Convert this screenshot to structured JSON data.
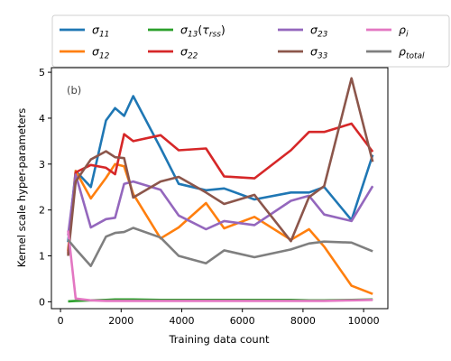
{
  "chart_data": {
    "type": "line",
    "xlabel": "Training data count",
    "ylabel": "Kernel scale hyper-parameters",
    "annotation": "(b)",
    "xlim": [
      -300,
      10800
    ],
    "ylim": [
      -0.15,
      5.1
    ],
    "xticks": [
      0,
      2000,
      4000,
      6000,
      8000,
      10000
    ],
    "yticks": [
      0,
      1,
      2,
      3,
      4,
      5
    ],
    "grid": false,
    "legend_position": "top",
    "x": [
      250,
      500,
      1000,
      1500,
      1800,
      2100,
      2400,
      3300,
      3900,
      4800,
      5400,
      6400,
      7600,
      8200,
      8700,
      9600,
      10300
    ],
    "series": [
      {
        "name": "σ",
        "sub": "11",
        "color": "#1f77b4",
        "values": [
          1.3,
          2.85,
          2.5,
          3.95,
          4.22,
          4.05,
          4.48,
          3.35,
          2.57,
          2.43,
          2.47,
          2.23,
          2.38,
          2.38,
          2.5,
          1.78,
          3.2
        ]
      },
      {
        "name": "σ",
        "sub": "12",
        "color": "#ff7f0e",
        "values": [
          1.1,
          2.85,
          2.25,
          2.7,
          3.0,
          2.95,
          2.35,
          1.38,
          1.62,
          2.15,
          1.6,
          1.85,
          1.35,
          1.58,
          1.2,
          0.35,
          0.17
        ]
      },
      {
        "name": "σ",
        "sub": "13",
        "paren": "τ",
        "paren_sub": "rss",
        "color": "#2ca02c",
        "values": [
          0.01,
          0.02,
          0.03,
          0.04,
          0.05,
          0.05,
          0.05,
          0.04,
          0.04,
          0.04,
          0.04,
          0.04,
          0.04,
          0.03,
          0.03,
          0.04,
          0.05
        ]
      },
      {
        "name": "σ",
        "sub": "22",
        "color": "#d62728",
        "values": [
          1.05,
          2.82,
          2.98,
          2.92,
          2.78,
          3.65,
          3.5,
          3.63,
          3.3,
          3.34,
          2.73,
          2.69,
          3.3,
          3.7,
          3.7,
          3.88,
          3.27
        ]
      },
      {
        "name": "σ",
        "sub": "23",
        "color": "#9467bd",
        "values": [
          1.45,
          2.77,
          1.62,
          1.8,
          1.83,
          2.57,
          2.62,
          2.44,
          1.88,
          1.58,
          1.76,
          1.67,
          2.2,
          2.31,
          1.9,
          1.76,
          2.52
        ]
      },
      {
        "name": "σ",
        "sub": "33",
        "color": "#8c564b",
        "values": [
          1.0,
          2.62,
          3.1,
          3.28,
          3.15,
          3.13,
          2.27,
          2.62,
          2.72,
          2.38,
          2.13,
          2.33,
          1.32,
          2.28,
          2.52,
          4.87,
          3.05
        ]
      },
      {
        "name": "ρ",
        "sub": "i",
        "color": "#e377c2",
        "values": [
          1.55,
          0.07,
          0.03,
          0.02,
          0.02,
          0.02,
          0.02,
          0.02,
          0.02,
          0.02,
          0.02,
          0.02,
          0.02,
          0.02,
          0.02,
          0.03,
          0.04
        ]
      },
      {
        "name": "ρ",
        "sub": "total",
        "color": "#7f7f7f",
        "values": [
          1.35,
          1.15,
          0.78,
          1.42,
          1.5,
          1.52,
          1.61,
          1.4,
          1.0,
          0.84,
          1.12,
          0.97,
          1.14,
          1.27,
          1.31,
          1.29,
          1.1
        ]
      }
    ]
  }
}
